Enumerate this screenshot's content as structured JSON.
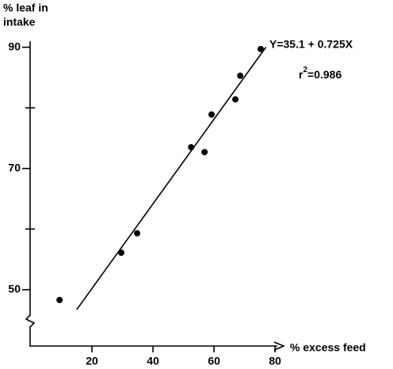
{
  "chart_data": {
    "type": "scatter",
    "ylabel": [
      "% leaf in",
      "intake"
    ],
    "xlabel": "% excess feed",
    "x": [
      9.4,
      29.6,
      34.8,
      52.5,
      56.9,
      59.2,
      67.0,
      68.6,
      75.3
    ],
    "values": [
      48.3,
      56.1,
      59.3,
      73.5,
      72.7,
      78.9,
      81.4,
      85.3,
      89.7
    ],
    "color": "#000000",
    "fit_line": {
      "x": [
        15,
        77
      ],
      "values": [
        46.7,
        90
      ]
    },
    "equation": "Y=35.1 + 0.725X",
    "r2": {
      "base": "r",
      "sup": "2",
      "rest": "=0.986"
    },
    "xlim": [
      0,
      82.3
    ],
    "ylim": [
      40.7,
      91
    ],
    "xticks": [
      20,
      40,
      60,
      80
    ],
    "yticks": [
      50,
      70,
      90
    ],
    "yminorticks": [
      60,
      80
    ]
  }
}
